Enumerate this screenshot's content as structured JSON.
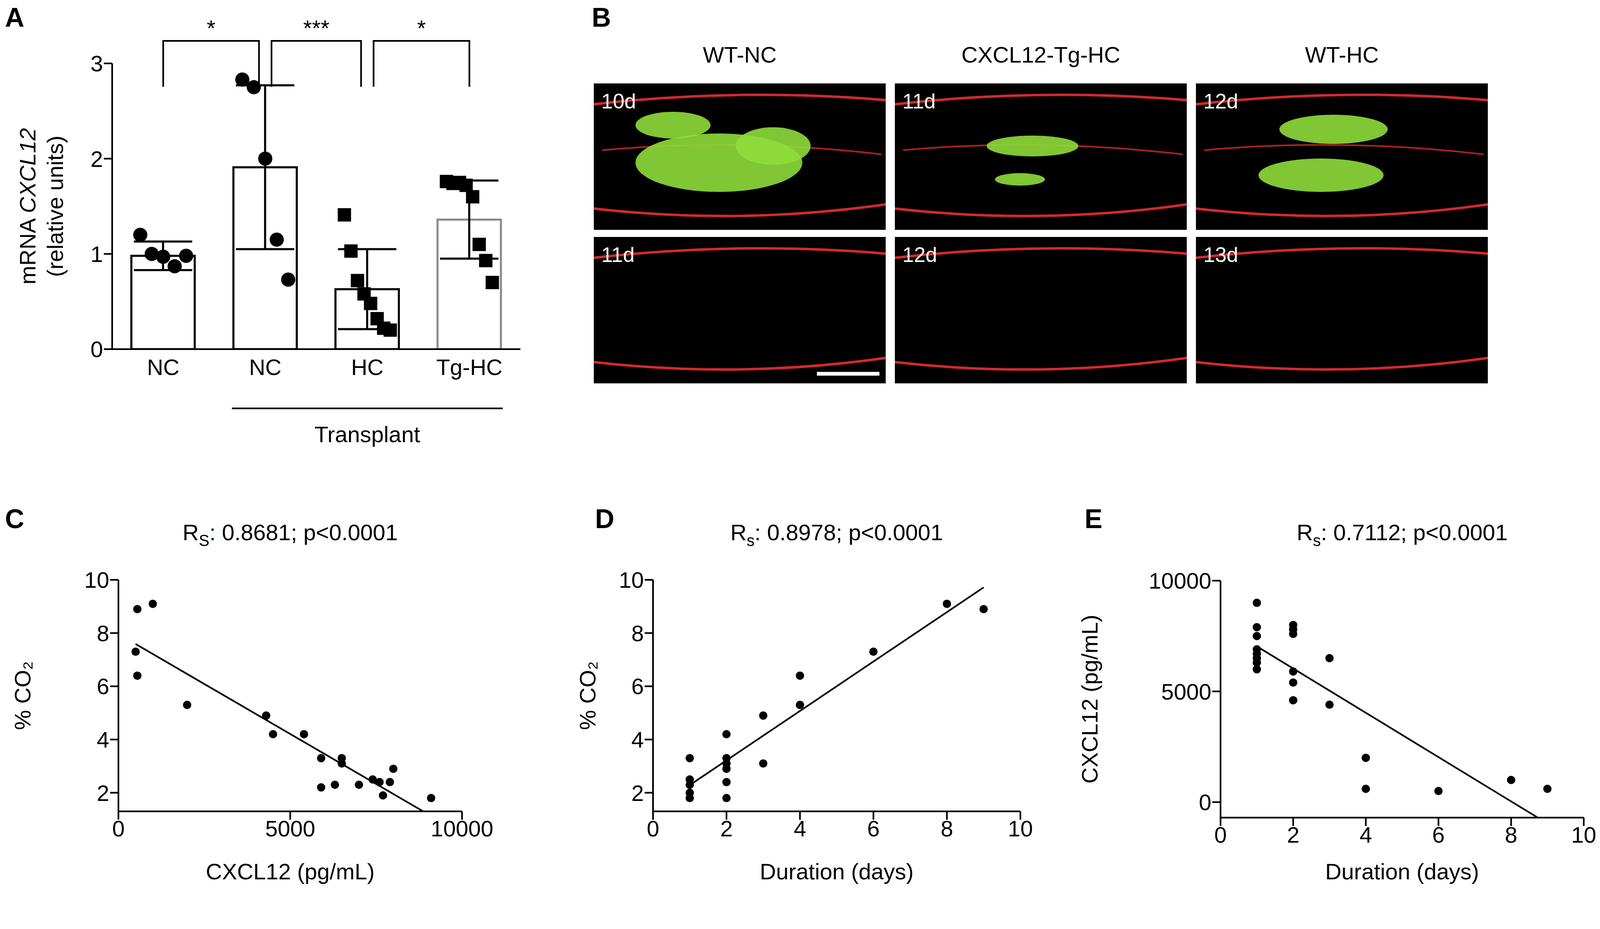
{
  "chart_data": [
    {
      "panel_label": "A",
      "type": "bar",
      "categories": [
        "NC",
        "NC",
        "HC",
        "Tg-HC"
      ],
      "values": [
        0.98,
        1.91,
        0.63,
        1.36
      ],
      "error": [
        0.15,
        0.86,
        0.42,
        0.41
      ],
      "points": [
        [
          1.2,
          1.0,
          0.97,
          0.87,
          0.98
        ],
        [
          2.83,
          2.75,
          2.0,
          1.15,
          0.73
        ],
        [
          1.41,
          1.03,
          0.72,
          0.58,
          0.48,
          0.32,
          0.22,
          0.2
        ],
        [
          1.76,
          1.74,
          1.75,
          1.72,
          1.6,
          1.1,
          0.93,
          0.7
        ]
      ],
      "colors": [
        "#000000",
        "#000000",
        "#000000",
        "#8c8c8c"
      ],
      "color": "#000000",
      "markers": [
        "circle",
        "circle",
        "square",
        "square"
      ],
      "group_label": {
        "text": "Transplant",
        "from": 1,
        "to": 3
      },
      "significance": [
        {
          "from": 0,
          "to": 1,
          "label": "*"
        },
        {
          "from": 1,
          "to": 2,
          "label": "***"
        },
        {
          "from": 2,
          "to": 3,
          "label": "*"
        }
      ],
      "ylabel": {
        "plain": "mRNA",
        "italic": "CXCL12",
        "second_line": "(relative units)"
      },
      "ylim": [
        0,
        3
      ],
      "yticks": [
        0,
        1,
        2,
        3
      ]
    },
    {
      "panel_label": "C",
      "type": "scatter",
      "title": {
        "text": "R",
        "sub": "S",
        "rest": ": 0.8681; p<0.0001"
      },
      "x": [
        500,
        550,
        550,
        1000,
        2000,
        4300,
        4500,
        5400,
        5900,
        5900,
        6300,
        6500,
        6500,
        7000,
        7400,
        7600,
        7700,
        7900,
        8000,
        9100
      ],
      "values": [
        7.3,
        8.9,
        6.4,
        9.1,
        5.3,
        4.9,
        4.2,
        4.2,
        3.3,
        2.2,
        2.3,
        3.3,
        3.1,
        2.3,
        2.5,
        2.4,
        1.9,
        2.4,
        2.9,
        1.8
      ],
      "xlabel": "CXCL12 (pg/mL)",
      "ylabel": "% CO₂",
      "xlim": [
        0,
        10000
      ],
      "xticks": [
        0,
        5000,
        10000
      ],
      "ylim": [
        1.3,
        10
      ],
      "yticks": [
        2,
        4,
        6,
        8,
        10
      ],
      "trendline": true,
      "color": "#000000"
    },
    {
      "panel_label": "D",
      "type": "scatter",
      "title": {
        "text": "R",
        "sub": "s",
        "rest": ": 0.8978; p<0.0001"
      },
      "x": [
        1,
        1,
        1,
        1,
        1,
        2,
        2,
        2,
        2,
        2,
        2,
        3,
        3,
        4,
        4,
        6,
        8,
        9
      ],
      "values": [
        3.3,
        2.5,
        2.3,
        2.0,
        1.8,
        4.2,
        3.3,
        3.1,
        2.9,
        2.4,
        1.8,
        4.9,
        3.1,
        6.4,
        5.3,
        7.3,
        9.1,
        8.9
      ],
      "xlabel": "Duration (days)",
      "ylabel": "% CO₂",
      "xlim": [
        0,
        10
      ],
      "xticks": [
        0,
        2,
        4,
        6,
        8,
        10
      ],
      "ylim": [
        1.3,
        10
      ],
      "yticks": [
        2,
        4,
        6,
        8,
        10
      ],
      "trendline": true,
      "color": "#000000"
    },
    {
      "panel_label": "E",
      "type": "scatter",
      "title": {
        "text": "R",
        "sub": "s",
        "rest": ": 0.7112; p<0.0001"
      },
      "x": [
        1,
        1,
        1,
        1,
        1,
        1,
        1,
        1,
        2,
        2,
        2,
        2,
        2,
        2,
        3,
        3,
        4,
        4,
        6,
        8,
        9
      ],
      "values": [
        9000,
        7900,
        7500,
        6900,
        6700,
        6500,
        6300,
        6000,
        8000,
        7800,
        7600,
        5900,
        5400,
        4600,
        6500,
        4400,
        2000,
        600,
        500,
        1000,
        600
      ],
      "xlabel": "Duration (days)",
      "ylabel": "CXCL12 (pg/mL)",
      "xlim": [
        0,
        10
      ],
      "xticks": [
        0,
        2,
        4,
        6,
        8,
        10
      ],
      "ylim": [
        -700,
        10000
      ],
      "yticks": [
        0,
        5000,
        10000
      ],
      "trendline": true,
      "color": "#000000"
    }
  ],
  "panel_b": {
    "panel_label": "B",
    "columns": [
      {
        "title": "WT-NC",
        "days": [
          "10d",
          "11d"
        ]
      },
      {
        "title": "CXCL12-Tg-HC",
        "days": [
          "11d",
          "12d"
        ]
      },
      {
        "title": "WT-HC",
        "days": [
          "12d",
          "13d"
        ]
      }
    ]
  }
}
